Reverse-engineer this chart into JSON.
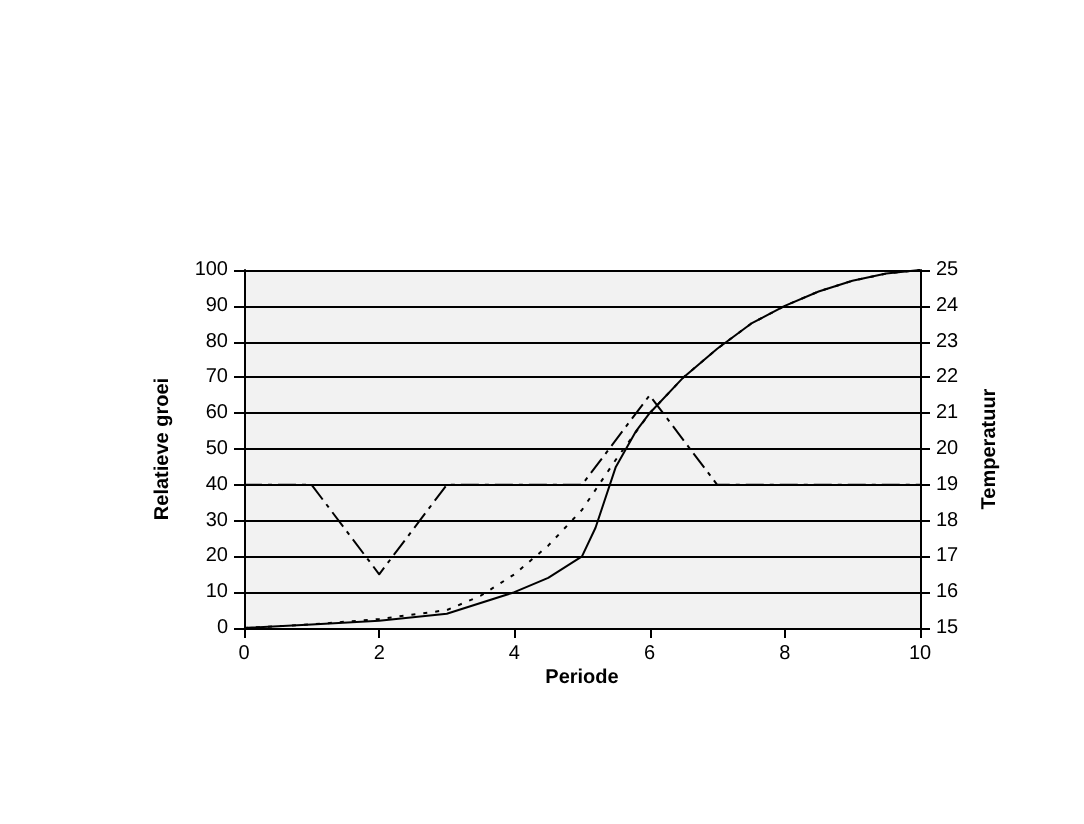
{
  "chart_data": {
    "type": "line",
    "xlabel": "Periode",
    "ylabel": "Relatieve groei",
    "y2label": "Temperatuur",
    "xlim": [
      0,
      10
    ],
    "xticks": [
      0,
      2,
      4,
      6,
      8,
      10
    ],
    "ylim": [
      0,
      100
    ],
    "yticks": [
      0,
      10,
      20,
      30,
      40,
      50,
      60,
      70,
      80,
      90,
      100
    ],
    "y2lim": [
      15,
      25
    ],
    "y2ticks": [
      15,
      16,
      17,
      18,
      19,
      20,
      21,
      22,
      23,
      24,
      25
    ],
    "grid": "y",
    "marker": "none",
    "series": [
      {
        "color": "#000000",
        "line_style": "solid",
        "x": [
          0,
          1,
          2,
          3,
          4,
          4.5,
          5,
          5.2,
          5.5,
          5.8,
          6,
          6.5,
          7,
          7.5,
          8,
          8.5,
          9,
          9.5,
          10
        ],
        "values": [
          0,
          1,
          2,
          4,
          10,
          14,
          20,
          28,
          45,
          55,
          60,
          70,
          78,
          85,
          90,
          94,
          97,
          99,
          100
        ]
      },
      {
        "color": "#000000",
        "line_style": "dotted",
        "x": [
          0,
          1,
          2,
          3,
          3.5,
          4,
          4.5,
          5,
          5.5,
          6,
          6.5,
          7,
          7.5,
          8,
          8.5,
          9,
          9.5,
          10
        ],
        "values": [
          0,
          1,
          2.5,
          5,
          9,
          15,
          23,
          33,
          47,
          60,
          70,
          78,
          85,
          90,
          94,
          97,
          99,
          100
        ]
      },
      {
        "color": "#000000",
        "line_style": "dashed",
        "axis": "y2",
        "x": [
          0,
          1,
          2,
          3,
          4,
          5,
          6,
          7,
          8,
          9,
          10
        ],
        "values": [
          19,
          19,
          16.5,
          19,
          19,
          19,
          21.5,
          19,
          19,
          19,
          19
        ]
      }
    ]
  }
}
